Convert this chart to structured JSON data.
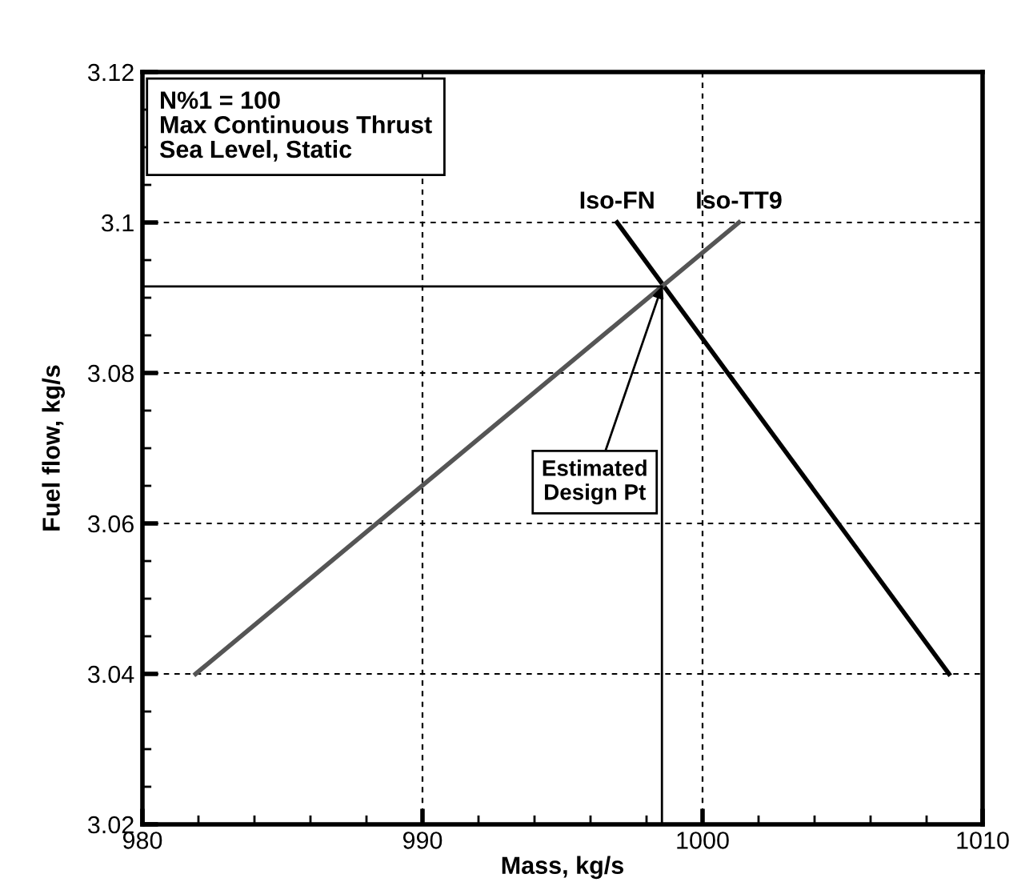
{
  "chart_data": {
    "type": "line",
    "xlabel": "Mass, kg/s",
    "ylabel": "Fuel flow, kg/s",
    "xlim": [
      980,
      1010
    ],
    "xticks": [
      980,
      990,
      1000,
      1010
    ],
    "ylim": [
      3.02,
      3.12
    ],
    "yticks": [
      3.02,
      3.04,
      3.06,
      3.08,
      3.1,
      3.12
    ],
    "grid": true,
    "line_style": "solid",
    "marker": "none",
    "series": [
      {
        "name": "Iso-FN",
        "color": "#000000",
        "x": [
          996.95,
          1008.8
        ],
        "values": [
          3.1,
          3.04
        ]
      },
      {
        "name": "Iso-TT9",
        "color": "#555555",
        "x": [
          981.9,
          1001.3
        ],
        "values": [
          3.04,
          3.1
        ]
      },
      {
        "color": "#000000",
        "x": [
          980,
          998.55,
          998.55
        ],
        "values": [
          3.0915,
          3.0915,
          3.02
        ]
      }
    ],
    "annotations": [
      "N%1 = 100\nMax Continuous Thrust\nSea Level, Static",
      {
        "text": "Estimated\nDesign Pt",
        "x": 998.55,
        "y": 3.0915
      }
    ]
  }
}
